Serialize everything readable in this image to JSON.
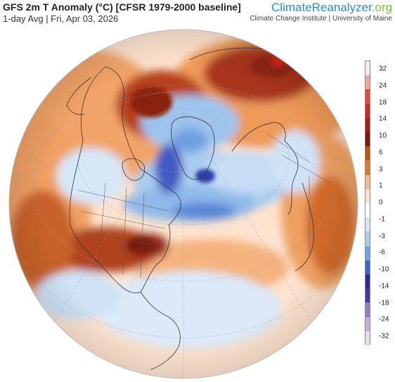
{
  "header": {
    "title": "GFS 2m T Anomaly (°C) [CFSR 1979-2000 baseline]",
    "subtitle": "1-day Avg | Fri, Apr 03, 2026",
    "brand_part1": "Climate",
    "brand_part2": "Reanalyzer",
    "brand_part3": ".org",
    "institution": "Climate Change Institute | University of Maine"
  },
  "legend": {
    "labels": [
      "32",
      "24",
      "18",
      "14",
      "10",
      "6",
      "3",
      "1",
      "0",
      "-1",
      "-3",
      "-6",
      "-10",
      "-14",
      "-18",
      "-24",
      "-32"
    ],
    "colors": [
      "#fbe7e3",
      "#f4a29a",
      "#e9473a",
      "#d8241b",
      "#a51d12",
      "#7a1a0c",
      "#c4520f",
      "#e4782a",
      "#f6b78a",
      "#fde2cc",
      "#ffffff",
      "#d7e7f8",
      "#a9cdf0",
      "#6fa6e4",
      "#3f64c9",
      "#2c2d9a",
      "#4c35a0",
      "#9a78c8",
      "#c6aee0",
      "#e7dcef"
    ]
  },
  "colors": {
    "ocean_base": "#fde3cf",
    "warm_strong": "#9a2a14",
    "warm": "#e07a2e",
    "cool": "#8fb9ea",
    "cool_strong": "#3f5bc4",
    "coast": "#333333"
  }
}
